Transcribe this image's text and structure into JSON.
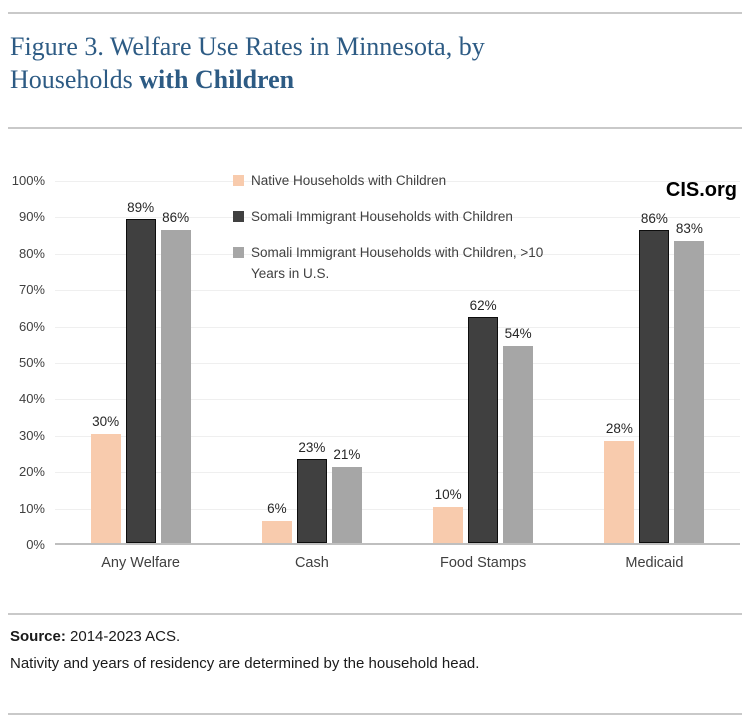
{
  "title": {
    "regular": "Figure 3. Welfare Use Rates in Minnesota, by Households",
    "bold": "with Children"
  },
  "watermark": "CIS.org",
  "chart_data": {
    "type": "bar",
    "title": "Figure 3. Welfare Use Rates in Minnesota, by Households with Children",
    "categories": [
      "Any Welfare",
      "Cash",
      "Food Stamps",
      "Medicaid"
    ],
    "series": [
      {
        "name": "Native Households with Children",
        "color": "#F8CBAD",
        "values": [
          30,
          6,
          10,
          28
        ]
      },
      {
        "name": "Somali Immigrant Households with Children",
        "color": "#404040",
        "border": "#0d0d0d",
        "values": [
          89,
          23,
          62,
          86
        ]
      },
      {
        "name": "Somali Immigrant Households with Children, >10 Years in U.S.",
        "color": "#A6A6A6",
        "values": [
          86,
          21,
          54,
          83
        ]
      }
    ],
    "xlabel": "",
    "ylabel": "",
    "ylim": [
      0,
      100
    ],
    "ytick_step": 10,
    "ytick_suffix": "%",
    "grid": true,
    "legend_position": "top-inside",
    "value_labels": "outside-end-percent"
  },
  "footer": {
    "source_label": "Source:",
    "source_text": "2014-2023 ACS.",
    "note": "Nativity and years of residency are determined by the household head."
  }
}
